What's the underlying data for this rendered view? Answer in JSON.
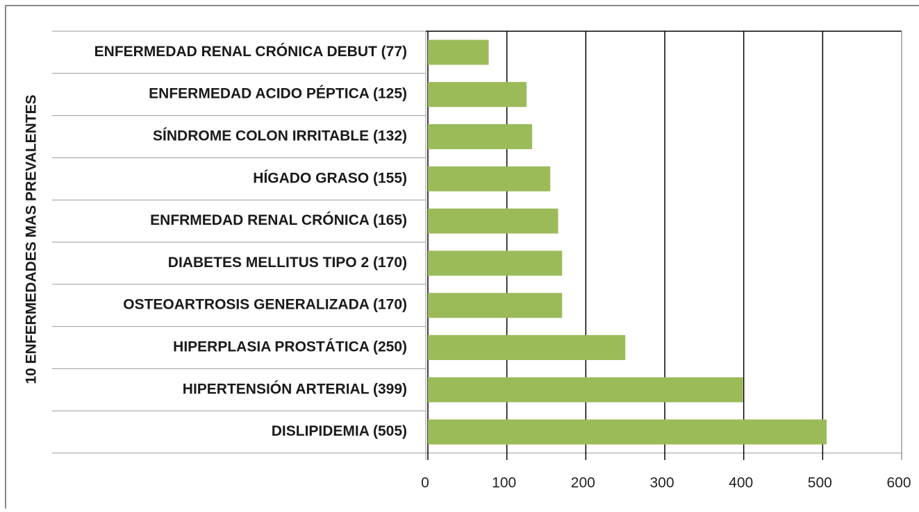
{
  "chart_data": {
    "type": "bar",
    "orientation": "horizontal",
    "y_label": "10 ENFERMEDADES MAS PREVALENTES",
    "categories": [
      "ENFERMEDAD RENAL CRÓNICA DEBUT (77)",
      "ENFERMEDAD ACIDO PÉPTICA (125)",
      "SÍNDROME COLON IRRITABLE (132)",
      "HÍGADO GRASO (155)",
      "ENFRMEDAD RENAL CRÓNICA (165)",
      "DIABETES MELLITUS TIPO 2 (170)",
      "OSTEOARTROSIS GENERALIZADA (170)",
      "HIPERPLASIA PROSTÁTICA (250)",
      "HIPERTENSIÓN ARTERIAL (399)",
      "DISLIPIDEMIA (505)"
    ],
    "values": [
      77,
      125,
      132,
      155,
      165,
      170,
      170,
      250,
      399,
      505
    ],
    "color": "#9bbb59",
    "xlim": [
      0,
      600
    ],
    "xticks": [
      0,
      100,
      200,
      300,
      400,
      500,
      600
    ],
    "grid": true
  }
}
